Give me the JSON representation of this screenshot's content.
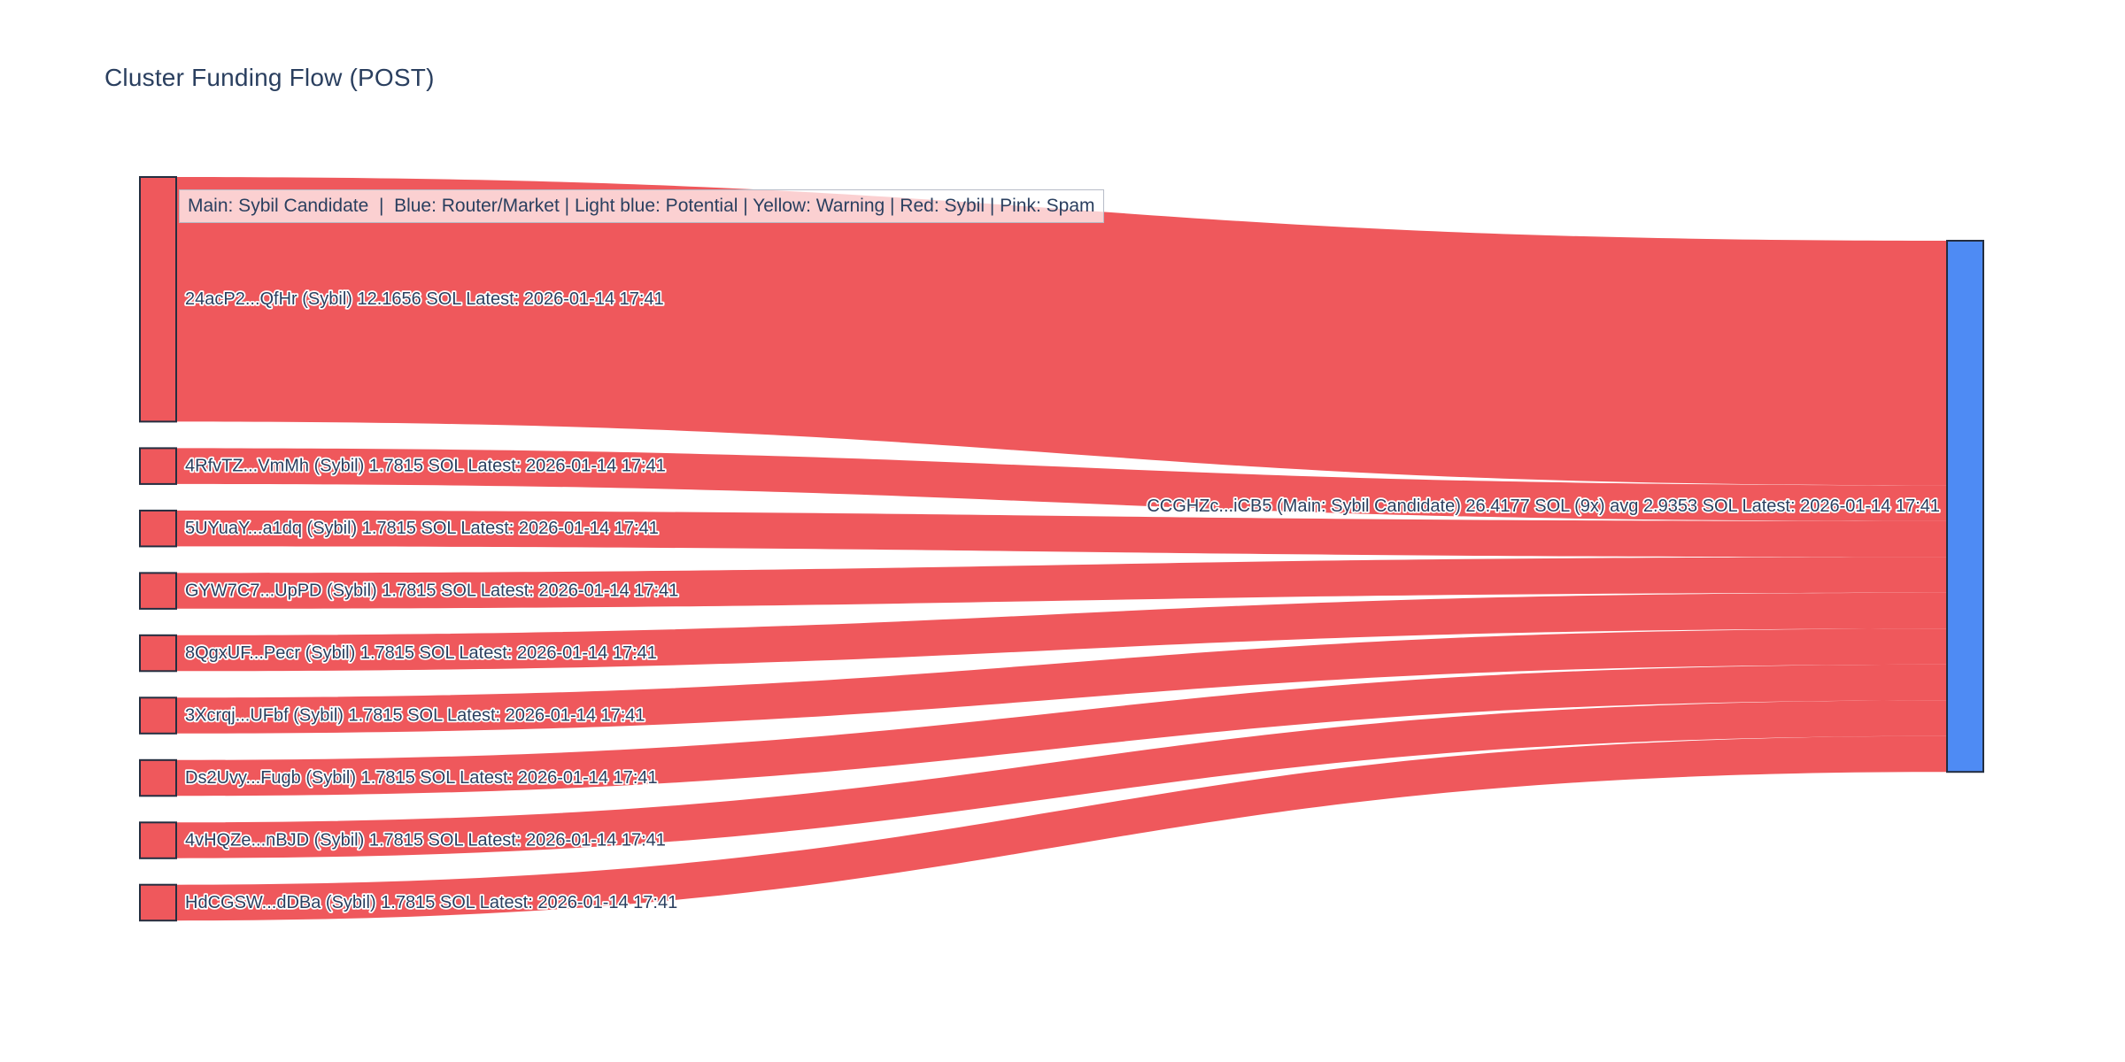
{
  "title": "Cluster Funding Flow (POST)",
  "legend_note": "Main: Sybil Candidate  |  Blue: Router/Market | Light blue: Potential | Yellow: Warning | Red: Sybil | Pink: Spam",
  "colors": {
    "flow": "#EF585C",
    "source_node": "#EF585C",
    "target_node": "#4E8BF4",
    "node_border": "#242e40",
    "title_text": "#2a3f5f",
    "label_text": "#2a3f5f"
  },
  "chart_data": {
    "type": "sankey",
    "title": "Cluster Funding Flow (POST)",
    "unit": "SOL",
    "legend_note": "Main: Sybil Candidate  |  Blue: Router/Market | Light blue: Potential | Yellow: Warning | Red: Sybil | Pink: Spam",
    "nodes": {
      "sources": [
        {
          "label": "24acP2...QfHr (Sybil) 12.1656 SOL Latest: 2026-01-14 17:41",
          "address": "24acP2...QfHr",
          "category": "Sybil",
          "value": 12.1656,
          "latest": "2026-01-14 17:41"
        },
        {
          "label": "4RfvTZ...VmMh (Sybil) 1.7815 SOL Latest: 2026-01-14 17:41",
          "address": "4RfvTZ...VmMh",
          "category": "Sybil",
          "value": 1.7815,
          "latest": "2026-01-14 17:41"
        },
        {
          "label": "5UYuaY...a1dq (Sybil) 1.7815 SOL Latest: 2026-01-14 17:41",
          "address": "5UYuaY...a1dq",
          "category": "Sybil",
          "value": 1.7815,
          "latest": "2026-01-14 17:41"
        },
        {
          "label": "GYW7C7...UpPD (Sybil) 1.7815 SOL Latest: 2026-01-14 17:41",
          "address": "GYW7C7...UpPD",
          "category": "Sybil",
          "value": 1.7815,
          "latest": "2026-01-14 17:41"
        },
        {
          "label": "8QgxUF...Pecr (Sybil) 1.7815 SOL Latest: 2026-01-14 17:41",
          "address": "8QgxUF...Pecr",
          "category": "Sybil",
          "value": 1.7815,
          "latest": "2026-01-14 17:41"
        },
        {
          "label": "3Xcrqj...UFbf (Sybil) 1.7815 SOL Latest: 2026-01-14 17:41",
          "address": "3Xcrqj...UFbf",
          "category": "Sybil",
          "value": 1.7815,
          "latest": "2026-01-14 17:41"
        },
        {
          "label": "Ds2Uvy...Fugb (Sybil) 1.7815 SOL Latest: 2026-01-14 17:41",
          "address": "Ds2Uvy...Fugb",
          "category": "Sybil",
          "value": 1.7815,
          "latest": "2026-01-14 17:41"
        },
        {
          "label": "4vHQZe...nBJD (Sybil) 1.7815 SOL Latest: 2026-01-14 17:41",
          "address": "4vHQZe...nBJD",
          "category": "Sybil",
          "value": 1.7815,
          "latest": "2026-01-14 17:41"
        },
        {
          "label": "HdCGSW...dDBa (Sybil) 1.7815 SOL Latest: 2026-01-14 17:41",
          "address": "HdCGSW...dDBa",
          "category": "Sybil",
          "value": 1.7815,
          "latest": "2026-01-14 17:41"
        }
      ],
      "target": {
        "label": "CCGHZc...iCB5 (Main: Sybil Candidate) 26.4177 SOL (9x) avg 2.9353 SOL Latest: 2026-01-14 17:41",
        "address": "CCGHZc...iCB5",
        "category": "Main: Sybil Candidate",
        "value": 26.4177,
        "tx_count": "9x",
        "avg": 2.9353,
        "latest": "2026-01-14 17:41"
      }
    },
    "links": [
      {
        "source": 0,
        "target": "CCGHZc...iCB5",
        "value": 12.1656
      },
      {
        "source": 1,
        "target": "CCGHZc...iCB5",
        "value": 1.7815
      },
      {
        "source": 2,
        "target": "CCGHZc...iCB5",
        "value": 1.7815
      },
      {
        "source": 3,
        "target": "CCGHZc...iCB5",
        "value": 1.7815
      },
      {
        "source": 4,
        "target": "CCGHZc...iCB5",
        "value": 1.7815
      },
      {
        "source": 5,
        "target": "CCGHZc...iCB5",
        "value": 1.7815
      },
      {
        "source": 6,
        "target": "CCGHZc...iCB5",
        "value": 1.7815
      },
      {
        "source": 7,
        "target": "CCGHZc...iCB5",
        "value": 1.7815
      },
      {
        "source": 8,
        "target": "CCGHZc...iCB5",
        "value": 1.7815
      }
    ]
  }
}
